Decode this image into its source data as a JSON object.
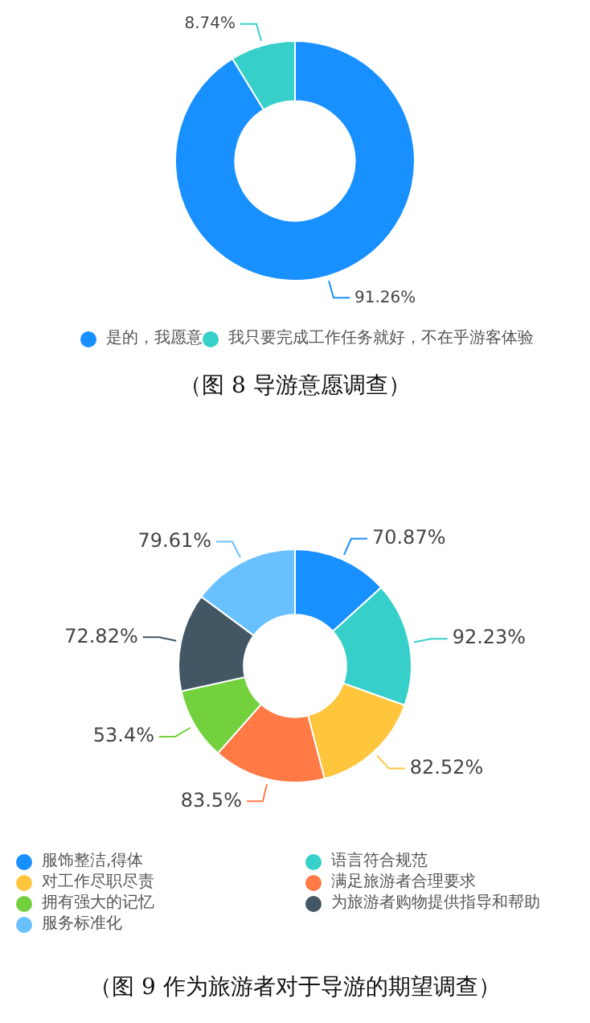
{
  "chart_data": [
    {
      "type": "donut",
      "title": "（图 8  导游意愿调查）",
      "categories": [
        "是的，我愿意",
        "我只要完成工作任务就好，不在乎游客体验"
      ],
      "values": [
        91.26,
        8.74
      ],
      "colors": [
        "#1890ff",
        "#36cfc9"
      ],
      "value_labels": [
        "91.26%",
        "8.74%"
      ],
      "legend": "bottom"
    },
    {
      "type": "donut",
      "title": "（图 9  作为旅游者对于导游的期望调查）",
      "categories": [
        "服饰整洁,得体",
        "语言符合规范",
        "对工作尽职尽责",
        "满足旅游者合理要求",
        "拥有强大的记忆",
        "为旅游者购物提供指导和帮助",
        "服务标准化"
      ],
      "values": [
        70.87,
        92.23,
        82.52,
        83.5,
        53.4,
        72.82,
        79.61
      ],
      "colors": [
        "#1890ff",
        "#36cfc9",
        "#ffc53d",
        "#ff7a45",
        "#73d13d",
        "#435663",
        "#69c0ff"
      ],
      "value_labels": [
        "70.87%",
        "92.23%",
        "82.52%",
        "83.5%",
        "53.4%",
        "72.82%",
        "79.61%"
      ],
      "legend": "bottom"
    }
  ]
}
